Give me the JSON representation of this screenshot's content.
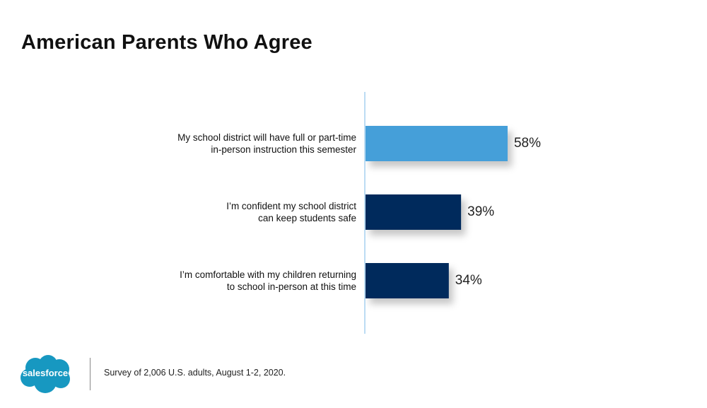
{
  "chart_data": {
    "type": "bar",
    "orientation": "horizontal",
    "title": "American Parents Who Agree",
    "categories": [
      [
        "My school district will have full or part-time",
        "in-person instruction this semester"
      ],
      [
        "I’m confident my school district",
        "can keep students safe"
      ],
      [
        "I’m comfortable with my children returning",
        "to school in-person at this time"
      ]
    ],
    "values": [
      58,
      39,
      34
    ],
    "value_labels": [
      "58%",
      "39%",
      "34%"
    ],
    "colors": [
      "#459fd9",
      "#062b5c",
      "#062b5c"
    ],
    "axis_color": "#bcdcf3",
    "xlim": [
      0,
      100
    ],
    "grid": false
  },
  "footer": {
    "logo_text": "salesforce",
    "logo_color": "#1798c1",
    "note": "Survey of 2,006 U.S. adults, August 1-2, 2020."
  }
}
